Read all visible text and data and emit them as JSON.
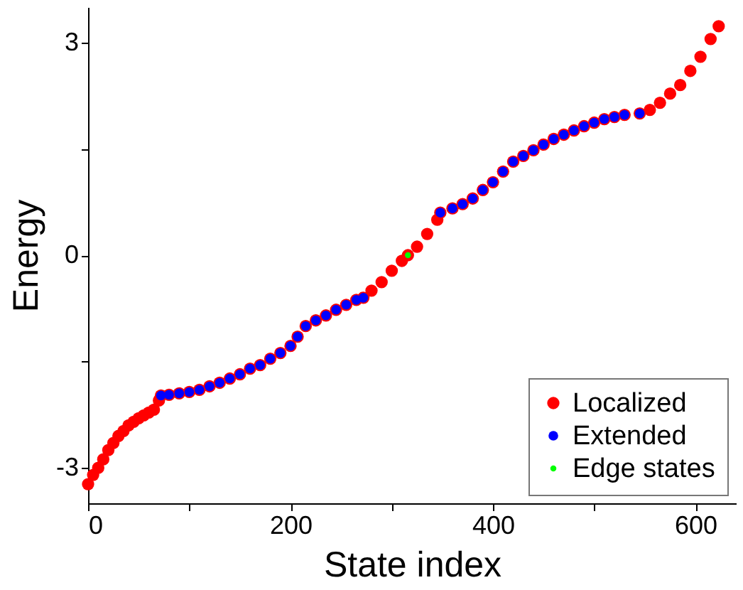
{
  "chart_data": {
    "type": "scatter",
    "xlabel": "State index",
    "ylabel": "Energy",
    "xlim": [
      0,
      640
    ],
    "ylim": [
      -3.5,
      3.5
    ],
    "xticks": [
      0,
      {
        "value": 100,
        "label": null
      },
      200,
      {
        "value": 300,
        "label": null
      },
      400,
      {
        "value": 500,
        "label": null
      },
      600
    ],
    "yticks": [
      -3,
      {
        "value": -1.5,
        "label": null
      },
      0,
      {
        "value": 1.5,
        "label": null
      },
      3
    ],
    "legend": "bottom right",
    "marker": "circle",
    "grid": false,
    "series": [
      {
        "name": "Localized",
        "color": "#ff0000",
        "x": [
          0,
          5,
          10,
          15,
          20,
          25,
          30,
          35,
          40,
          45,
          50,
          55,
          60,
          65,
          70,
          72,
          80,
          90,
          100,
          110,
          120,
          130,
          140,
          150,
          160,
          170,
          180,
          190,
          200,
          207,
          215,
          225,
          235,
          245,
          255,
          265,
          272,
          280,
          290,
          300,
          310,
          316,
          325,
          335,
          345,
          348,
          360,
          370,
          380,
          390,
          400,
          410,
          420,
          430,
          440,
          450,
          460,
          470,
          480,
          490,
          500,
          510,
          520,
          530,
          545,
          555,
          565,
          575,
          585,
          595,
          605,
          615,
          623
        ],
        "values": [
          -3.23,
          -3.1,
          -3.0,
          -2.88,
          -2.75,
          -2.65,
          -2.55,
          -2.48,
          -2.4,
          -2.35,
          -2.3,
          -2.26,
          -2.22,
          -2.18,
          -2.05,
          -1.98,
          -1.97,
          -1.95,
          -1.93,
          -1.9,
          -1.85,
          -1.8,
          -1.74,
          -1.68,
          -1.6,
          -1.55,
          -1.46,
          -1.38,
          -1.28,
          -1.15,
          -1.0,
          -0.92,
          -0.85,
          -0.77,
          -0.7,
          -0.63,
          -0.6,
          -0.5,
          -0.38,
          -0.22,
          -0.08,
          0.0,
          0.12,
          0.3,
          0.5,
          0.6,
          0.66,
          0.72,
          0.8,
          0.92,
          1.03,
          1.18,
          1.32,
          1.4,
          1.48,
          1.56,
          1.64,
          1.7,
          1.76,
          1.82,
          1.87,
          1.92,
          1.95,
          1.98,
          2.0,
          2.05,
          2.15,
          2.28,
          2.4,
          2.6,
          2.8,
          3.05,
          3.23
        ]
      },
      {
        "name": "Extended",
        "color": "#0000ff",
        "x": [
          72,
          80,
          90,
          100,
          110,
          120,
          130,
          140,
          150,
          160,
          170,
          180,
          190,
          200,
          207,
          215,
          225,
          235,
          245,
          255,
          265,
          272,
          348,
          360,
          370,
          380,
          390,
          400,
          410,
          420,
          430,
          440,
          450,
          460,
          470,
          480,
          490,
          500,
          510,
          520,
          530,
          545
        ],
        "values": [
          -1.98,
          -1.97,
          -1.95,
          -1.93,
          -1.9,
          -1.85,
          -1.8,
          -1.74,
          -1.68,
          -1.6,
          -1.55,
          -1.46,
          -1.38,
          -1.28,
          -1.15,
          -1.0,
          -0.92,
          -0.85,
          -0.77,
          -0.7,
          -0.63,
          -0.6,
          0.6,
          0.66,
          0.72,
          0.8,
          0.92,
          1.03,
          1.18,
          1.32,
          1.4,
          1.48,
          1.56,
          1.64,
          1.7,
          1.76,
          1.82,
          1.87,
          1.92,
          1.95,
          1.98,
          2.0
        ]
      },
      {
        "name": "Edge states",
        "color": "#00ff00",
        "x": [
          316
        ],
        "values": [
          0.0
        ]
      }
    ]
  }
}
